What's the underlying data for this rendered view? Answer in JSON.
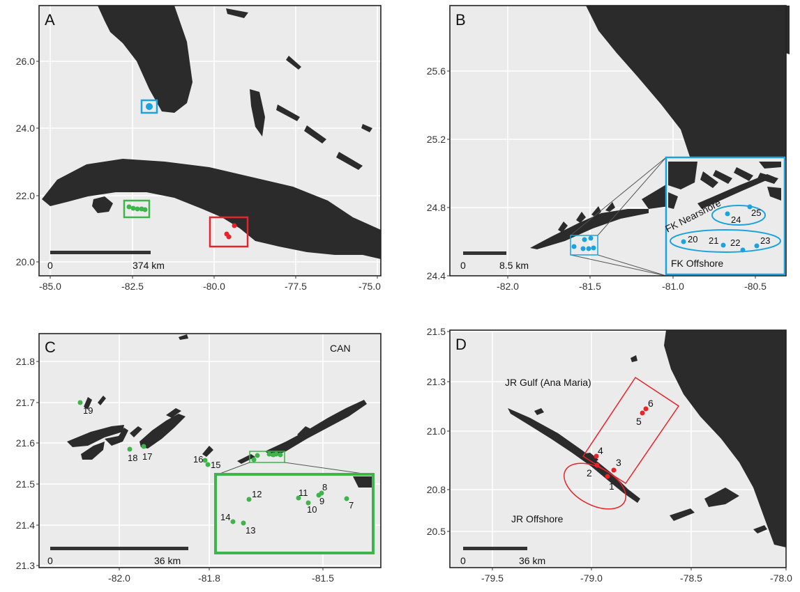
{
  "colors": {
    "sea": "#ebebeb",
    "land": "#2b2b2b",
    "florida_keys": "#1aa3dd",
    "cuba_north": "#3db54a",
    "jardines": "#e8232a"
  },
  "panels": [
    {
      "id": "A",
      "label": "A",
      "x_ticks": [
        "-85.0",
        "-82.5",
        "-80.0",
        "-77.5",
        "-75.0"
      ],
      "y_ticks": [
        "20.0",
        "22.0",
        "24.0",
        "26.0"
      ],
      "scalebar": {
        "start": "0",
        "end": "374 km"
      },
      "annotations": []
    },
    {
      "id": "B",
      "label": "B",
      "x_ticks": [
        "-82.0",
        "-81.5",
        "-81.0",
        "-80.5"
      ],
      "y_ticks": [
        "24.4",
        "24.8",
        "25.2",
        "25.6"
      ],
      "scalebar": {
        "start": "0",
        "end": "8.5 km"
      },
      "annotations": [
        "FK Nearshore",
        "FK Offshore"
      ],
      "sites": [
        {
          "id": "20",
          "label": "20"
        },
        {
          "id": "21",
          "label": "21"
        },
        {
          "id": "22",
          "label": "22"
        },
        {
          "id": "23",
          "label": "23"
        },
        {
          "id": "24",
          "label": "24"
        },
        {
          "id": "25",
          "label": "25"
        }
      ]
    },
    {
      "id": "C",
      "label": "C",
      "x_ticks": [
        "-82.0",
        "-81.8",
        "-81.5"
      ],
      "y_ticks": [
        "21.3",
        "21.4",
        "21.5",
        "21.6",
        "21.7",
        "21.8"
      ],
      "scalebar": {
        "start": "0",
        "end": "36 km"
      },
      "annotations": [
        "CAN"
      ],
      "sites": [
        {
          "id": "7",
          "label": "7"
        },
        {
          "id": "8",
          "label": "8"
        },
        {
          "id": "9",
          "label": "9"
        },
        {
          "id": "10",
          "label": "10"
        },
        {
          "id": "11",
          "label": "11"
        },
        {
          "id": "12",
          "label": "12"
        },
        {
          "id": "13",
          "label": "13"
        },
        {
          "id": "14",
          "label": "14"
        },
        {
          "id": "15",
          "label": "15"
        },
        {
          "id": "16",
          "label": "16"
        },
        {
          "id": "17",
          "label": "17"
        },
        {
          "id": "18",
          "label": "18"
        },
        {
          "id": "19",
          "label": "19"
        }
      ]
    },
    {
      "id": "D",
      "label": "D",
      "x_ticks": [
        "-79.5",
        "-79.0",
        "-78.5",
        "-78.0"
      ],
      "y_ticks": [
        "20.5",
        "20.8",
        "21.0",
        "21.3",
        "21.5"
      ],
      "scalebar": {
        "start": "0",
        "end": "36 km"
      },
      "annotations": [
        "JR Gulf (Ana Maria)",
        "JR Offshore"
      ],
      "sites": [
        {
          "id": "1",
          "label": "1"
        },
        {
          "id": "2",
          "label": "2"
        },
        {
          "id": "3",
          "label": "3"
        },
        {
          "id": "4",
          "label": "4"
        },
        {
          "id": "5",
          "label": "5"
        },
        {
          "id": "6",
          "label": "6"
        }
      ]
    }
  ]
}
